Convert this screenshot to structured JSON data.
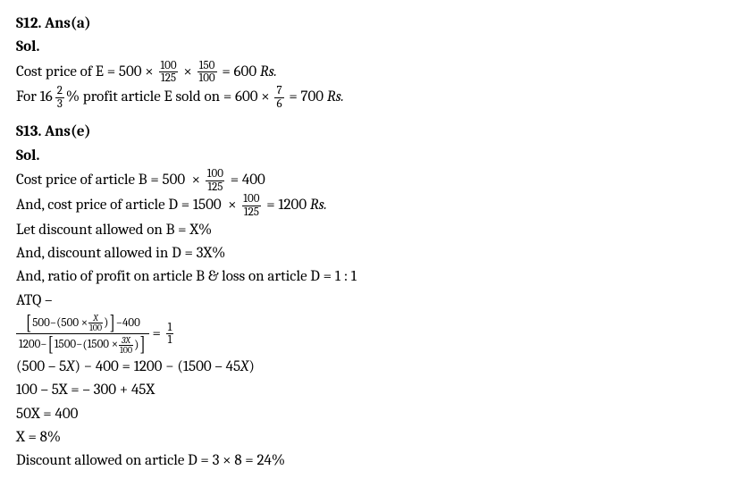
{
  "s12": {
    "heading": "S12. Ans(a)",
    "sol": "Sol.",
    "l1_a": "Cost price of E = 500 × ",
    "l1_f1_n": "100",
    "l1_f1_d": "125",
    "l1_b": " × ",
    "l1_f2_n": "150",
    "l1_f2_d": "100",
    "l1_c": " = 600 ",
    "l1_rs": "Rs.",
    "l2_a": "For ",
    "l2_mixed_whole": "16",
    "l2_mixed_n": "2",
    "l2_mixed_d": "3",
    "l2_b": "% profit article E sold on = 600 × ",
    "l2_f_n": "7",
    "l2_f_d": "6",
    "l2_c": " = 700 ",
    "l2_rs": "Rs."
  },
  "s13": {
    "heading": "S13. Ans(e)",
    "sol": "Sol.",
    "l1_a": "Cost price of article B = 500  × ",
    "l1_f_n": "100",
    "l1_f_d": "125",
    "l1_b": " = 400",
    "l2_a": "And, cost price of article D = 1500  × ",
    "l2_f_n": "100",
    "l2_f_d": "125",
    "l2_b": " = 1200 ",
    "l2_rs": "Rs.",
    "l3": "Let discount allowed on B = X%",
    "l4": "And, discount allowed in D = 3X%",
    "l5": "And, ratio of profit on article B & loss on article D = 1 : 1",
    "l6": "ATQ –",
    "eq_num_a": "500−",
    "eq_num_b": "500 ×",
    "eq_num_sf_n": "X",
    "eq_num_sf_d": "100",
    "eq_num_c": "−400",
    "eq_den_a": "1200−",
    "eq_den_b": "1500−",
    "eq_den_c": "1500 ×",
    "eq_den_sf_n": "3X",
    "eq_den_sf_d": "100",
    "eq_rhs_eq": " = ",
    "eq_rhs_n": "1",
    "eq_rhs_d": "1",
    "l8": "(500 –  5X) − 400 = 1200 − (1500 –  45X)",
    "l9": "100 – 5X = – 300 + 45X",
    "l10": "50X = 400",
    "l11": "X = 8%",
    "l12": "Discount allowed on article D = 3 × 8 = 24%"
  }
}
